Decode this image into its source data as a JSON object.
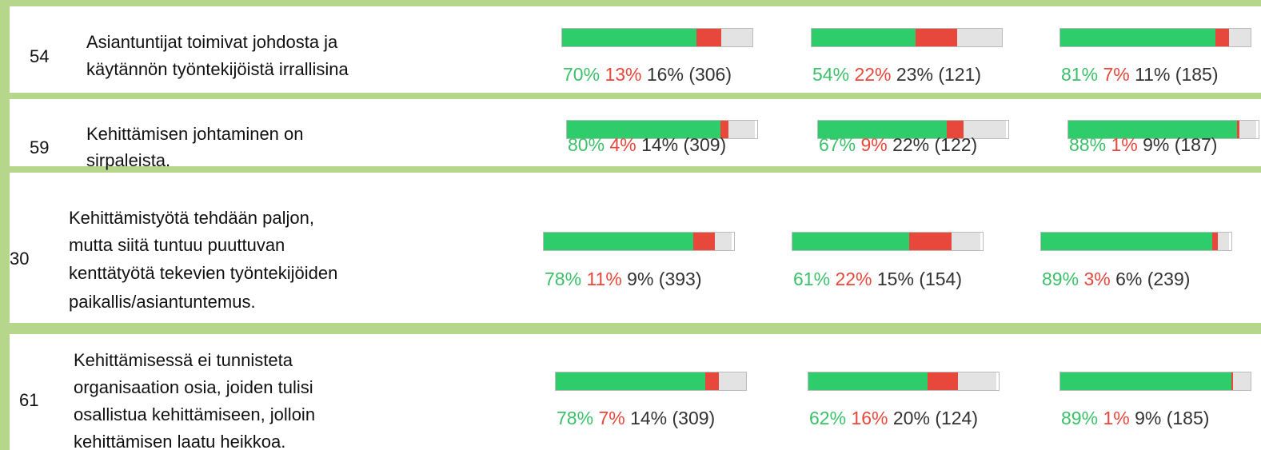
{
  "rows": [
    {
      "id": "54",
      "lines": [
        "Asiantuntijat toimivat johdosta ja",
        "käytännön työntekijöistä irrallisina"
      ],
      "results": [
        {
          "values": [
            70,
            13,
            16
          ],
          "value_labels": [
            "70%",
            "13%",
            "16%"
          ],
          "count": "(306)"
        },
        {
          "values": [
            54,
            22,
            23
          ],
          "value_labels": [
            "54%",
            "22%",
            "23%"
          ],
          "count": "(121)"
        },
        {
          "values": [
            81,
            7,
            11
          ],
          "value_labels": [
            "81%",
            "7%",
            "11%"
          ],
          "count": "(185)"
        }
      ]
    },
    {
      "id": "59",
      "lines": [
        "Kehittämisen johtaminen on",
        "sirpaleista."
      ],
      "results": [
        {
          "values": [
            80,
            4,
            14
          ],
          "value_labels": [
            "80%",
            "4%",
            "14%"
          ],
          "count": "(309)"
        },
        {
          "values": [
            67,
            9,
            22
          ],
          "value_labels": [
            "67%",
            "9%",
            "22%"
          ],
          "count": "(122)"
        },
        {
          "values": [
            88,
            1,
            9
          ],
          "value_labels": [
            "88%",
            "1%",
            "9%"
          ],
          "count": "(187)"
        }
      ]
    },
    {
      "id": "30",
      "lines": [
        "Kehittämistyötä tehdään paljon,",
        "mutta siitä tuntuu puuttuvan",
        "kenttätyötä tekevien työntekijöiden",
        "paikallis/asiantuntemus."
      ],
      "results": [
        {
          "values": [
            78,
            11,
            9
          ],
          "value_labels": [
            "78%",
            "11%",
            "9%"
          ],
          "count": "(393)"
        },
        {
          "values": [
            61,
            22,
            15
          ],
          "value_labels": [
            "61%",
            "22%",
            "15%"
          ],
          "count": "(154)"
        },
        {
          "values": [
            89,
            3,
            6
          ],
          "value_labels": [
            "89%",
            "3%",
            "6%"
          ],
          "count": "(239)"
        }
      ]
    },
    {
      "id": "61",
      "lines": [
        "Kehittämisessä ei tunnisteta",
        "organisaation osia, joiden tulisi",
        "osallistua kehittämiseen, jolloin",
        "kehittämisen laatu heikkoa."
      ],
      "results": [
        {
          "values": [
            78,
            7,
            14
          ],
          "value_labels": [
            "78%",
            "7%",
            "14%"
          ],
          "count": "(309)"
        },
        {
          "values": [
            62,
            16,
            20
          ],
          "value_labels": [
            "62%",
            "16%",
            "20%"
          ],
          "count": "(124)"
        },
        {
          "values": [
            89,
            1,
            9
          ],
          "value_labels": [
            "89%",
            "1%",
            "9%"
          ],
          "count": "(185)"
        }
      ]
    }
  ]
}
